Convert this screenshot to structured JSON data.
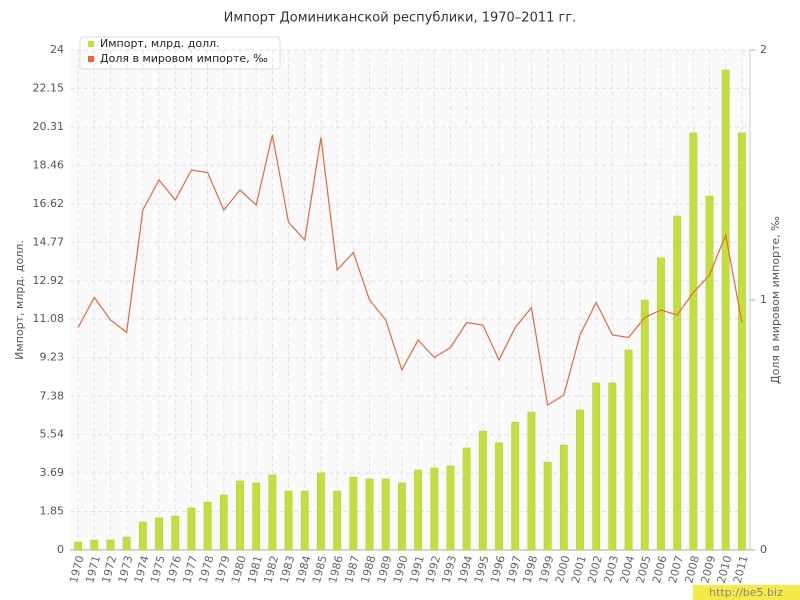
{
  "chart_data": {
    "type": "bar-line",
    "title": "Импорт Доминиканской республики, 1970–2011 гг.",
    "y_label": "Импорт, млрд. долл.",
    "y2_label": "Доля в мировом импорте, ‰",
    "watermark": "http://be5.biz",
    "categories": [
      "1970",
      "1971",
      "1972",
      "1973",
      "1974",
      "1975",
      "1976",
      "1977",
      "1978",
      "1979",
      "1980",
      "1981",
      "1982",
      "1983",
      "1984",
      "1985",
      "1986",
      "1987",
      "1988",
      "1989",
      "1990",
      "1991",
      "1992",
      "1993",
      "1994",
      "1995",
      "1996",
      "1997",
      "1998",
      "1999",
      "2000",
      "2001",
      "2002",
      "2003",
      "2004",
      "2005",
      "2006",
      "2007",
      "2008",
      "2009",
      "2010",
      "2011"
    ],
    "series": [
      {
        "name": "Импорт, млрд. долл.",
        "type": "bar",
        "color": "#c3df3f",
        "values": [
          0.38,
          0.48,
          0.48,
          0.62,
          1.34,
          1.54,
          1.63,
          2.02,
          2.3,
          2.64,
          3.31,
          3.22,
          3.6,
          2.83,
          2.83,
          3.7,
          2.83,
          3.5,
          3.41,
          3.41,
          3.22,
          3.84,
          3.94,
          4.03,
          4.9,
          5.71,
          5.14,
          6.14,
          6.62,
          4.22,
          5.04,
          6.72,
          8.02,
          8.02,
          9.6,
          12.0,
          14.02,
          16.03,
          20.02,
          16.99,
          23.04,
          20.02
        ]
      },
      {
        "name": "Доля в мировом импорте, ‰",
        "type": "line",
        "axis": "y2",
        "color": "#e8673c",
        "values": [
          0.89,
          1.01,
          0.92,
          0.87,
          1.36,
          1.48,
          1.4,
          1.52,
          1.51,
          1.36,
          1.44,
          1.38,
          1.66,
          1.31,
          1.24,
          1.65,
          1.12,
          1.19,
          1.0,
          0.92,
          0.72,
          0.84,
          0.77,
          0.81,
          0.91,
          0.9,
          0.76,
          0.89,
          0.97,
          0.58,
          0.62,
          0.86,
          0.99,
          0.86,
          0.85,
          0.93,
          0.96,
          0.94,
          1.03,
          1.1,
          1.26,
          0.91
        ]
      }
    ],
    "ylim": [
      0,
      24
    ],
    "yticks": [
      0,
      1.85,
      3.69,
      5.54,
      7.38,
      9.23,
      11.08,
      12.92,
      14.77,
      16.62,
      18.46,
      20.31,
      22.15,
      24
    ],
    "y2lim": [
      0,
      2
    ],
    "y2ticks": [
      0,
      1,
      2
    ],
    "grid": true,
    "legend": "top-left"
  }
}
